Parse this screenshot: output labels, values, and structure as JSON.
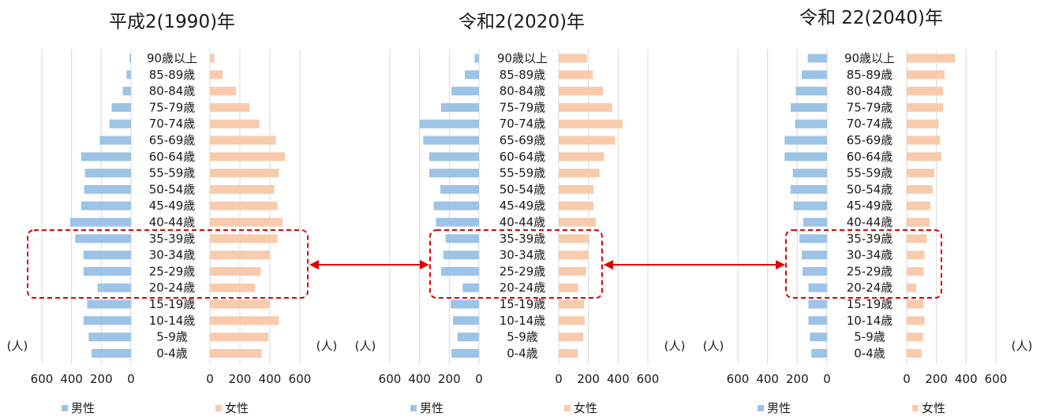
{
  "chart_data": [
    {
      "type": "bar",
      "title": "平成2(1990)年",
      "age_groups": [
        "90歳以上",
        "85-89歳",
        "80-84歳",
        "75-79歳",
        "70-74歳",
        "65-69歳",
        "60-64歳",
        "55-59歳",
        "50-54歳",
        "45-49歳",
        "40-44歳",
        "35-39歳",
        "30-34歳",
        "25-29歳",
        "20-24歳",
        "15-19歳",
        "10-14歳",
        "5-9歳",
        "0-4歳"
      ],
      "unit_left": "(人)",
      "unit_right": "(人)",
      "series": [
        {
          "name": "男性",
          "values": [
            10,
            30,
            55,
            130,
            145,
            210,
            335,
            310,
            315,
            335,
            410,
            375,
            320,
            320,
            225,
            295,
            320,
            285,
            265
          ]
        },
        {
          "name": "女性",
          "values": [
            30,
            85,
            175,
            265,
            330,
            440,
            500,
            460,
            430,
            450,
            485,
            450,
            400,
            340,
            300,
            400,
            460,
            390,
            345
          ]
        }
      ],
      "xlim": [
        0,
        600
      ],
      "tick_labels": [
        "600",
        "400",
        "200",
        "0"
      ],
      "tick_labels_right": [
        "0",
        "200",
        "400",
        "600"
      ],
      "highlight": [
        "35-39歳",
        "20-24歳"
      ]
    },
    {
      "type": "bar",
      "title": "令和2(2020)年",
      "age_groups": [
        "90歳以上",
        "85-89歳",
        "80-84歳",
        "75-79歳",
        "70-74歳",
        "65-69歳",
        "60-64歳",
        "55-59歳",
        "50-54歳",
        "45-49歳",
        "40-44歳",
        "35-39歳",
        "30-34歳",
        "25-29歳",
        "20-24歳",
        "15-19歳",
        "10-14歳",
        "5-9歳",
        "0-4歳"
      ],
      "unit_left": "(人)",
      "unit_right": "(人)",
      "series": [
        {
          "name": "男性",
          "values": [
            30,
            95,
            185,
            255,
            400,
            375,
            335,
            335,
            260,
            305,
            290,
            225,
            240,
            255,
            110,
            190,
            175,
            145,
            185
          ]
        },
        {
          "name": "女性",
          "values": [
            190,
            230,
            300,
            360,
            430,
            380,
            305,
            275,
            235,
            235,
            250,
            205,
            200,
            185,
            130,
            170,
            175,
            165,
            130
          ]
        }
      ],
      "xlim": [
        0,
        600
      ],
      "tick_labels": [
        "600",
        "400",
        "200",
        "0"
      ],
      "tick_labels_right": [
        "0",
        "200",
        "400",
        "600"
      ],
      "highlight": [
        "35-39歳",
        "20-24歳"
      ]
    },
    {
      "type": "bar",
      "title": "令和 22(2040)年",
      "age_groups": [
        "90歳以上",
        "85-89歳",
        "80-84歳",
        "75-79歳",
        "70-74歳",
        "65-69歳",
        "60-64歳",
        "55-59歳",
        "50-54歳",
        "45-49歳",
        "40-44歳",
        "35-39歳",
        "30-34歳",
        "25-29歳",
        "20-24歳",
        "15-19歳",
        "10-14歳",
        "5-9歳",
        "0-4歳"
      ],
      "unit_left": "(人)",
      "unit_right": "(人)",
      "series": [
        {
          "name": "男性",
          "values": [
            130,
            170,
            210,
            245,
            215,
            285,
            285,
            230,
            245,
            225,
            160,
            185,
            170,
            165,
            125,
            125,
            125,
            115,
            105
          ]
        },
        {
          "name": "女性",
          "values": [
            325,
            255,
            245,
            245,
            215,
            225,
            235,
            185,
            175,
            160,
            155,
            135,
            120,
            115,
            65,
            115,
            120,
            110,
            100
          ]
        }
      ],
      "xlim": [
        0,
        600
      ],
      "tick_labels": [
        "600",
        "400",
        "200",
        "0"
      ],
      "tick_labels_right": [
        "0",
        "200",
        "400",
        "600"
      ],
      "highlight": [
        "35-39歳",
        "20-24歳"
      ]
    }
  ],
  "colors": {
    "male": "#9DC3E6",
    "female": "#F8CBAD",
    "highlight": "#E00000",
    "arrow": "#E00000",
    "grid": "#D9D9D9"
  },
  "legend": {
    "male": "男性",
    "female": "女性"
  }
}
